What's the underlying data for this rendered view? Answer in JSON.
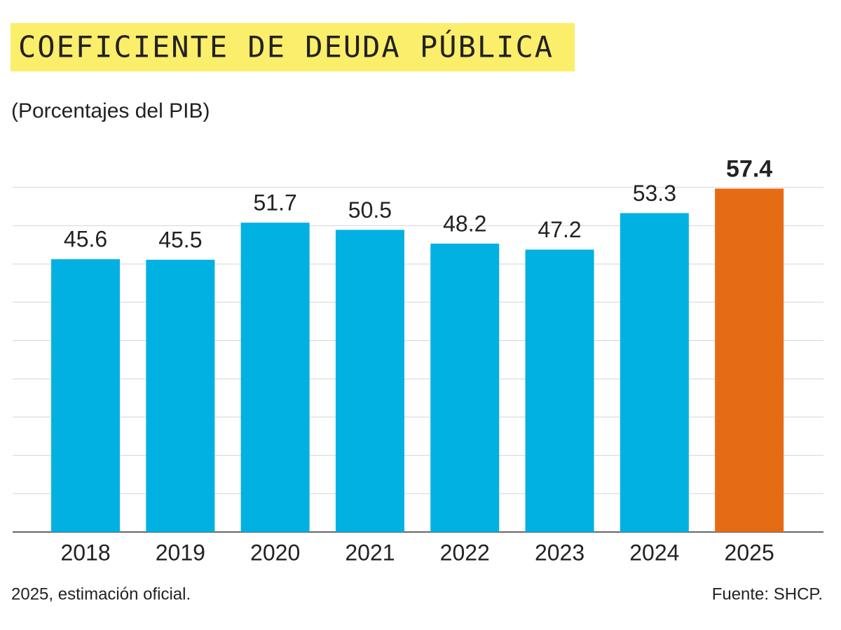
{
  "chart_data": {
    "type": "bar",
    "title": "COEFICIENTE DE DEUDA PÚBLICA",
    "subtitle": "(Porcentajes del PIB)",
    "categories": [
      "2018",
      "2019",
      "2020",
      "2021",
      "2022",
      "2023",
      "2024",
      "2025"
    ],
    "values": [
      45.6,
      45.5,
      51.7,
      50.5,
      48.2,
      47.2,
      53.3,
      57.4
    ],
    "colors": [
      "#00b1e2",
      "#00b1e2",
      "#00b1e2",
      "#00b1e2",
      "#00b1e2",
      "#00b1e2",
      "#00b1e2",
      "#e66b15"
    ],
    "ylim": [
      0,
      64
    ],
    "yticks": [
      0,
      6.4,
      12.8,
      19.2,
      25.6,
      32,
      38.4,
      44.8,
      51.2,
      57.6
    ],
    "grid": true,
    "note": "2025, estimación oficial.",
    "source": "Fuente: SHCP."
  }
}
